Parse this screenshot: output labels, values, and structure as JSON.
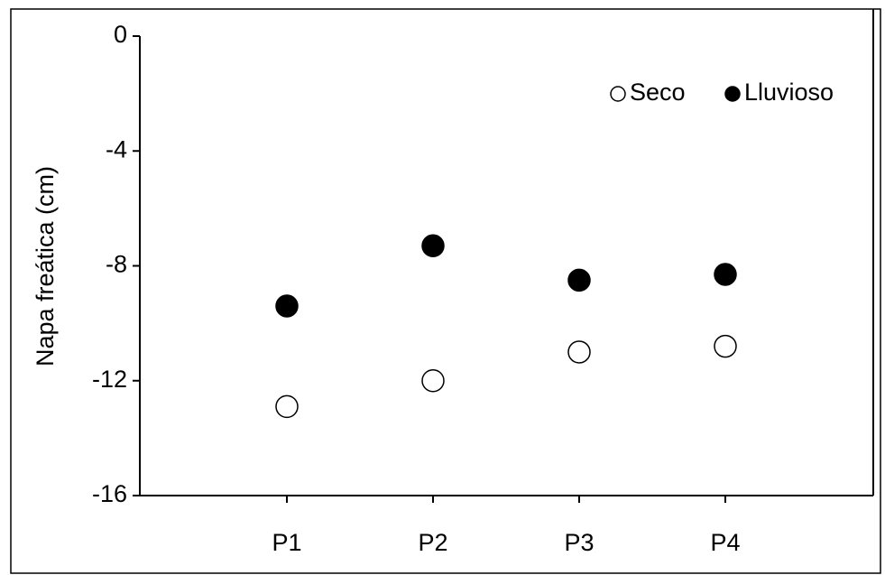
{
  "chart_data": {
    "type": "scatter",
    "y_label": "Napa freática (cm)",
    "categories": [
      "P1",
      "P2",
      "P3",
      "P4"
    ],
    "series": [
      {
        "name": "Seco",
        "color": "#ffffff",
        "values": [
          -12.9,
          -12.0,
          -11.0,
          -10.8
        ]
      },
      {
        "name": "Lluvioso",
        "color": "#000000",
        "values": [
          -9.4,
          -7.3,
          -8.5,
          -8.3
        ]
      }
    ],
    "ylim": [
      -16,
      0
    ],
    "yticks": [
      0,
      -4,
      -8,
      -12,
      -16
    ],
    "legend": "upper right",
    "grid": false
  }
}
